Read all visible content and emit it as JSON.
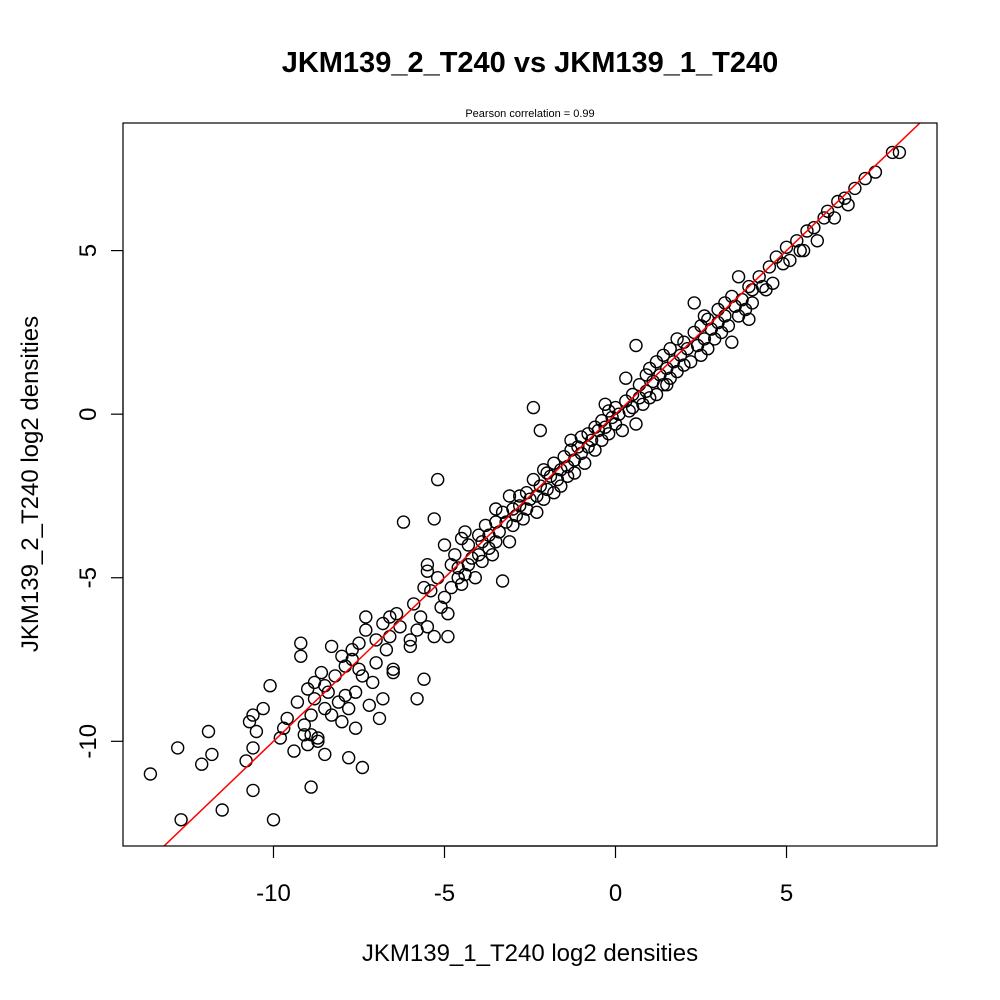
{
  "chart_data": {
    "type": "scatter",
    "title": "JKM139_2_T240 vs JKM139_1_T240",
    "subtitle": "Pearson correlation =  0.99",
    "xlabel": "JKM139_1_T240 log2 densities",
    "ylabel": "JKM139_2_T240 log2 densities",
    "xlim": [
      -14.4,
      9.4
    ],
    "ylim": [
      -13.2,
      8.9
    ],
    "xticks": [
      -10,
      -5,
      0,
      5
    ],
    "yticks": [
      -10,
      -5,
      0,
      5
    ],
    "xtick_labels": [
      "-10",
      "-5",
      "0",
      "5"
    ],
    "ytick_labels": [
      "-10",
      "-5",
      "0",
      "5"
    ],
    "grid": false,
    "legend": "none",
    "marker": "open circle",
    "point_color": "#000000",
    "fit_line": {
      "slope": 1.0,
      "intercept": 0.0,
      "color": "#ff0000"
    },
    "series": [
      {
        "points": [
          [
            -13.6,
            -11.0
          ],
          [
            -12.8,
            -10.2
          ],
          [
            -12.7,
            -12.4
          ],
          [
            -12.1,
            -10.7
          ],
          [
            -11.9,
            -9.7
          ],
          [
            -11.8,
            -10.4
          ],
          [
            -11.5,
            -12.1
          ],
          [
            -10.8,
            -10.6
          ],
          [
            -10.7,
            -9.4
          ],
          [
            -10.6,
            -9.2
          ],
          [
            -10.6,
            -11.5
          ],
          [
            -10.6,
            -10.2
          ],
          [
            -10.5,
            -9.7
          ],
          [
            -10.3,
            -9.0
          ],
          [
            -10.0,
            -12.4
          ],
          [
            -10.1,
            -8.3
          ],
          [
            -9.8,
            -9.9
          ],
          [
            -9.7,
            -9.6
          ],
          [
            -9.6,
            -9.3
          ],
          [
            -9.4,
            -10.3
          ],
          [
            -9.3,
            -8.8
          ],
          [
            -9.2,
            -7.0
          ],
          [
            -9.2,
            -7.4
          ],
          [
            -9.1,
            -9.5
          ],
          [
            -9.1,
            -9.8
          ],
          [
            -9.0,
            -10.1
          ],
          [
            -9.0,
            -8.4
          ],
          [
            -8.9,
            -11.4
          ],
          [
            -8.9,
            -9.8
          ],
          [
            -8.9,
            -9.2
          ],
          [
            -8.8,
            -8.2
          ],
          [
            -8.8,
            -8.7
          ],
          [
            -8.7,
            -9.9
          ],
          [
            -8.7,
            -10.0
          ],
          [
            -8.6,
            -7.9
          ],
          [
            -8.5,
            -9.0
          ],
          [
            -8.5,
            -8.3
          ],
          [
            -8.5,
            -10.4
          ],
          [
            -8.4,
            -8.5
          ],
          [
            -8.3,
            -7.1
          ],
          [
            -8.3,
            -9.2
          ],
          [
            -8.2,
            -8.0
          ],
          [
            -8.1,
            -8.8
          ],
          [
            -8.0,
            -7.4
          ],
          [
            -8.0,
            -9.4
          ],
          [
            -7.9,
            -7.7
          ],
          [
            -7.9,
            -8.6
          ],
          [
            -7.8,
            -10.5
          ],
          [
            -7.8,
            -9.0
          ],
          [
            -7.7,
            -7.5
          ],
          [
            -7.6,
            -9.6
          ],
          [
            -7.6,
            -8.5
          ],
          [
            -7.5,
            -7.0
          ],
          [
            -7.5,
            -7.8
          ],
          [
            -7.4,
            -10.8
          ],
          [
            -7.4,
            -8.0
          ],
          [
            -7.3,
            -6.6
          ],
          [
            -7.3,
            -6.2
          ],
          [
            -7.2,
            -8.9
          ],
          [
            -7.1,
            -8.2
          ],
          [
            -7.0,
            -7.6
          ],
          [
            -7.0,
            -6.9
          ],
          [
            -6.9,
            -9.3
          ],
          [
            -6.8,
            -6.4
          ],
          [
            -6.8,
            -8.7
          ],
          [
            -6.7,
            -7.2
          ],
          [
            -6.6,
            -6.8
          ],
          [
            -6.5,
            -7.8
          ],
          [
            -6.5,
            -7.9
          ],
          [
            -6.4,
            -6.1
          ],
          [
            -6.3,
            -6.5
          ],
          [
            -6.2,
            -3.3
          ],
          [
            -6.0,
            -6.9
          ],
          [
            -6.0,
            -7.1
          ],
          [
            -5.9,
            -5.8
          ],
          [
            -5.8,
            -6.6
          ],
          [
            -5.8,
            -8.7
          ],
          [
            -5.7,
            -6.2
          ],
          [
            -5.6,
            -8.1
          ],
          [
            -5.6,
            -5.3
          ],
          [
            -5.5,
            -6.5
          ],
          [
            -5.5,
            -4.8
          ],
          [
            -5.4,
            -5.4
          ],
          [
            -5.3,
            -6.8
          ],
          [
            -5.3,
            -3.2
          ],
          [
            -5.2,
            -2.0
          ],
          [
            -5.2,
            -5.0
          ],
          [
            -5.1,
            -5.9
          ],
          [
            -5.0,
            -5.6
          ],
          [
            -5.0,
            -4.0
          ],
          [
            -4.9,
            -6.1
          ],
          [
            -4.9,
            -6.8
          ],
          [
            -4.8,
            -4.6
          ],
          [
            -4.8,
            -5.3
          ],
          [
            -4.7,
            -4.3
          ],
          [
            -4.6,
            -5.0
          ],
          [
            -4.6,
            -4.7
          ],
          [
            -4.5,
            -5.2
          ],
          [
            -4.5,
            -3.8
          ],
          [
            -4.4,
            -4.9
          ],
          [
            -4.3,
            -4.0
          ],
          [
            -4.3,
            -4.6
          ],
          [
            -4.2,
            -4.4
          ],
          [
            -4.1,
            -5.0
          ],
          [
            -4.0,
            -3.7
          ],
          [
            -4.0,
            -4.3
          ],
          [
            -3.9,
            -3.9
          ],
          [
            -3.9,
            -4.5
          ],
          [
            -3.8,
            -3.4
          ],
          [
            -3.7,
            -4.1
          ],
          [
            -3.7,
            -3.7
          ],
          [
            -3.6,
            -4.3
          ],
          [
            -3.5,
            -3.3
          ],
          [
            -3.5,
            -3.9
          ],
          [
            -3.4,
            -3.6
          ],
          [
            -3.3,
            -3.0
          ],
          [
            -3.3,
            -5.1
          ],
          [
            -3.2,
            -3.3
          ],
          [
            -3.1,
            -2.5
          ],
          [
            -3.1,
            -3.9
          ],
          [
            -3.0,
            -2.9
          ],
          [
            -3.0,
            -3.4
          ],
          [
            -2.9,
            -3.1
          ],
          [
            -2.8,
            -2.5
          ],
          [
            -2.8,
            -2.8
          ],
          [
            -2.7,
            -3.2
          ],
          [
            -2.6,
            -2.4
          ],
          [
            -2.6,
            -2.9
          ],
          [
            -2.5,
            -2.6
          ],
          [
            -2.4,
            0.2
          ],
          [
            -2.4,
            -2.0
          ],
          [
            -2.3,
            -2.5
          ],
          [
            -2.3,
            -3.0
          ],
          [
            -2.2,
            -0.5
          ],
          [
            -2.2,
            -2.2
          ],
          [
            -2.1,
            -2.6
          ],
          [
            -2.0,
            -1.8
          ],
          [
            -2.0,
            -2.3
          ],
          [
            -1.9,
            -1.9
          ],
          [
            -1.8,
            -2.4
          ],
          [
            -1.8,
            -1.5
          ],
          [
            -1.7,
            -2.0
          ],
          [
            -1.6,
            -1.7
          ],
          [
            -1.6,
            -2.2
          ],
          [
            -1.5,
            -1.3
          ],
          [
            -1.4,
            -1.6
          ],
          [
            -1.4,
            -1.9
          ],
          [
            -1.3,
            -1.1
          ],
          [
            -1.2,
            -1.4
          ],
          [
            -1.2,
            -1.8
          ],
          [
            -1.1,
            -1.0
          ],
          [
            -1.0,
            -1.2
          ],
          [
            -1.0,
            -0.7
          ],
          [
            -0.9,
            -1.5
          ],
          [
            -0.8,
            -0.6
          ],
          [
            -0.8,
            -1.0
          ],
          [
            -0.7,
            -0.8
          ],
          [
            -0.6,
            -0.4
          ],
          [
            -0.6,
            -1.1
          ],
          [
            -0.5,
            -0.5
          ],
          [
            -0.4,
            -0.2
          ],
          [
            -0.4,
            -0.8
          ],
          [
            -0.3,
            -0.4
          ],
          [
            -0.2,
            0.1
          ],
          [
            -0.2,
            -0.6
          ],
          [
            -0.1,
            -0.1
          ],
          [
            0.0,
            0.2
          ],
          [
            0.0,
            -0.3
          ],
          [
            0.1,
            0.0
          ],
          [
            0.2,
            -0.5
          ],
          [
            0.3,
            1.1
          ],
          [
            0.3,
            0.4
          ],
          [
            0.4,
            0.1
          ],
          [
            0.5,
            0.6
          ],
          [
            0.5,
            0.2
          ],
          [
            0.6,
            -0.3
          ],
          [
            0.6,
            2.1
          ],
          [
            0.7,
            0.9
          ],
          [
            0.7,
            0.5
          ],
          [
            0.8,
            0.3
          ],
          [
            0.9,
            1.2
          ],
          [
            0.9,
            0.7
          ],
          [
            1.0,
            0.5
          ],
          [
            1.0,
            1.4
          ],
          [
            1.1,
            1.0
          ],
          [
            1.2,
            0.6
          ],
          [
            1.2,
            1.6
          ],
          [
            1.3,
            1.2
          ],
          [
            1.4,
            0.9
          ],
          [
            1.4,
            1.8
          ],
          [
            1.5,
            1.4
          ],
          [
            1.6,
            1.1
          ],
          [
            1.6,
            2.0
          ],
          [
            1.7,
            1.6
          ],
          [
            1.8,
            1.3
          ],
          [
            1.8,
            2.3
          ],
          [
            1.9,
            1.8
          ],
          [
            2.0,
            1.5
          ],
          [
            2.0,
            2.2
          ],
          [
            2.1,
            2.0
          ],
          [
            2.2,
            1.6
          ],
          [
            2.3,
            3.4
          ],
          [
            2.3,
            2.5
          ],
          [
            2.4,
            2.1
          ],
          [
            2.5,
            1.8
          ],
          [
            2.5,
            2.7
          ],
          [
            2.6,
            2.3
          ],
          [
            2.7,
            2.0
          ],
          [
            2.7,
            2.9
          ],
          [
            2.8,
            2.6
          ],
          [
            2.9,
            2.3
          ],
          [
            3.0,
            3.2
          ],
          [
            3.0,
            2.8
          ],
          [
            3.1,
            2.5
          ],
          [
            3.2,
            3.4
          ],
          [
            3.2,
            3.0
          ],
          [
            3.3,
            2.7
          ],
          [
            3.4,
            2.2
          ],
          [
            3.4,
            3.6
          ],
          [
            3.5,
            3.3
          ],
          [
            3.6,
            3.0
          ],
          [
            3.6,
            4.2
          ],
          [
            3.7,
            3.5
          ],
          [
            3.8,
            3.2
          ],
          [
            3.9,
            3.9
          ],
          [
            4.0,
            3.8
          ],
          [
            4.0,
            3.4
          ],
          [
            4.2,
            4.2
          ],
          [
            4.3,
            3.9
          ],
          [
            4.5,
            4.5
          ],
          [
            4.6,
            4.0
          ],
          [
            4.7,
            4.8
          ],
          [
            4.9,
            4.6
          ],
          [
            5.0,
            5.1
          ],
          [
            5.1,
            4.7
          ],
          [
            5.3,
            5.3
          ],
          [
            5.4,
            5.0
          ],
          [
            5.6,
            5.6
          ],
          [
            5.8,
            5.7
          ],
          [
            5.9,
            5.3
          ],
          [
            6.1,
            6.0
          ],
          [
            6.2,
            6.2
          ],
          [
            6.4,
            6.0
          ],
          [
            6.5,
            6.5
          ],
          [
            6.7,
            6.6
          ],
          [
            6.8,
            6.4
          ],
          [
            7.0,
            6.9
          ],
          [
            7.3,
            7.2
          ],
          [
            7.6,
            7.4
          ],
          [
            8.1,
            8.0
          ],
          [
            8.3,
            8.0
          ],
          [
            5.5,
            5.0
          ],
          [
            4.4,
            3.8
          ],
          [
            3.9,
            2.9
          ],
          [
            2.6,
            3.0
          ],
          [
            1.5,
            0.9
          ],
          [
            -0.3,
            0.3
          ],
          [
            -1.3,
            -0.8
          ],
          [
            -2.1,
            -1.7
          ],
          [
            -3.5,
            -2.9
          ],
          [
            -4.4,
            -3.6
          ],
          [
            -5.5,
            -4.6
          ],
          [
            -6.6,
            -6.2
          ],
          [
            -7.7,
            -7.2
          ]
        ]
      }
    ]
  }
}
